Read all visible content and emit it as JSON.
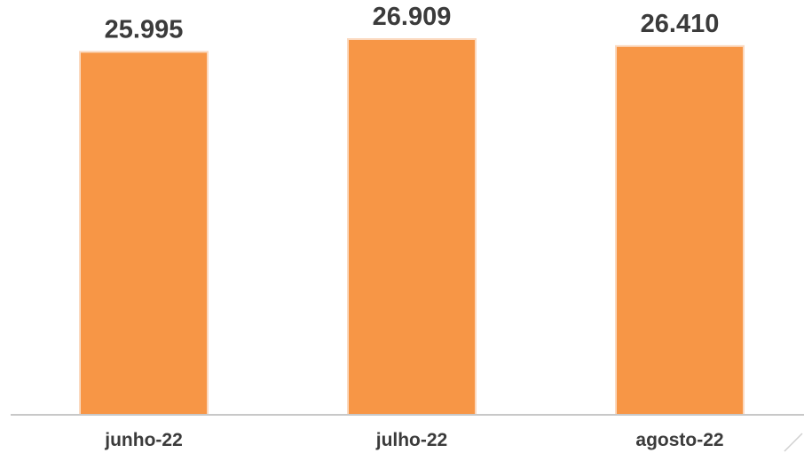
{
  "chart_data": {
    "type": "bar",
    "categories": [
      "junho-22",
      "julho-22",
      "agosto-22"
    ],
    "values": [
      25.995,
      26.909,
      26.41
    ],
    "value_labels": [
      "25.995",
      "26.909",
      "26.410"
    ],
    "ylim": [
      0,
      27.8
    ],
    "grid": false,
    "legend": "none",
    "colors": {
      "bar": "#f79646",
      "bar_outline": "#fbd9bf",
      "text": "#3b3b3b",
      "axis": "#c8c8c8"
    }
  }
}
